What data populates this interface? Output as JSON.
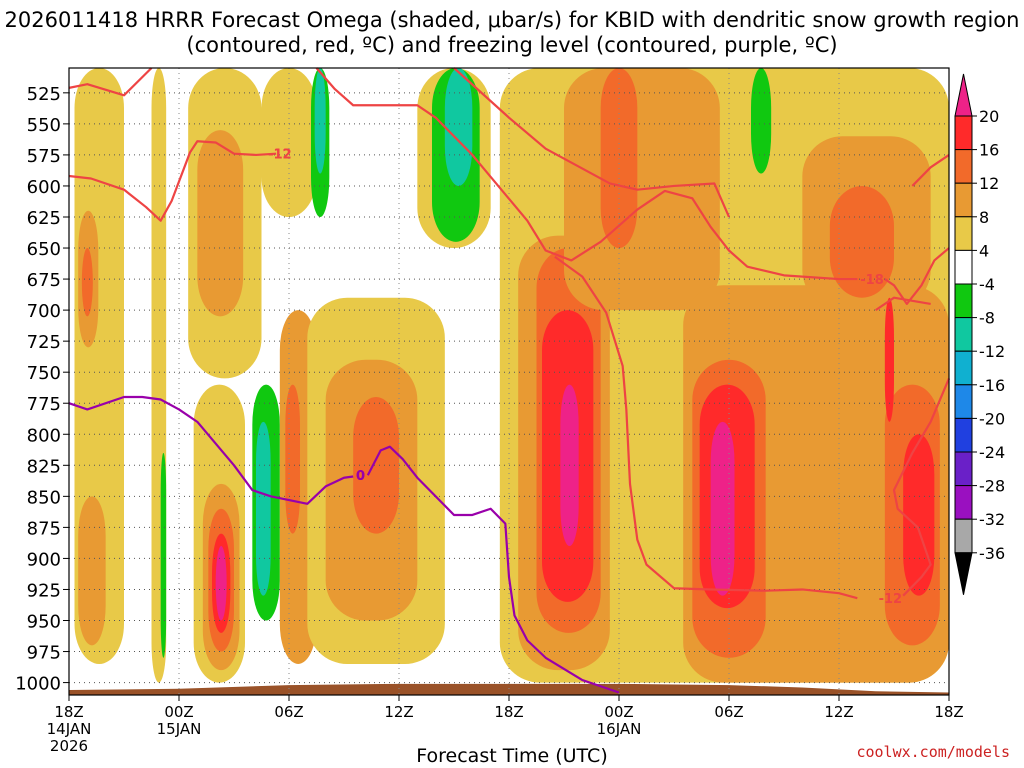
{
  "title": "2026011418 HRRR Forecast Omega (shaded, μbar/s) for KBID with dendritic snow growth region (contoured, red, ºC) and freezing level (contoured, purple, ºC)",
  "footer": {
    "credit": "coolwx.com/models"
  },
  "colors": {
    "grid": "#555555",
    "ground": "#9a5228",
    "dgz_contour": "#ee4444",
    "freezing_contour": "#9900aa"
  },
  "chart_data": {
    "type": "heatmap",
    "title": "2026011418 HRRR Forecast Omega (shaded, μbar/s) for KBID with dendritic snow growth region (contoured, red, ºC) and freezing level (contoured, purple, ºC)",
    "xlabel": "Forecast Time (UTC)",
    "ylabel": "",
    "x_range_hours": [
      0,
      48
    ],
    "ylim": [
      1010,
      505
    ],
    "y_ticks": [
      525,
      550,
      575,
      600,
      625,
      650,
      675,
      700,
      725,
      750,
      775,
      800,
      825,
      850,
      875,
      900,
      925,
      950,
      975,
      1000
    ],
    "x_ticks": [
      {
        "h": 0,
        "lines": [
          "18Z",
          "14JAN",
          "2026"
        ]
      },
      {
        "h": 6,
        "lines": [
          "00Z",
          "15JAN"
        ]
      },
      {
        "h": 12,
        "lines": [
          "06Z"
        ]
      },
      {
        "h": 18,
        "lines": [
          "12Z"
        ]
      },
      {
        "h": 24,
        "lines": [
          "18Z"
        ]
      },
      {
        "h": 30,
        "lines": [
          "00Z",
          "16JAN"
        ]
      },
      {
        "h": 36,
        "lines": [
          "06Z"
        ]
      },
      {
        "h": 42,
        "lines": [
          "12Z"
        ]
      },
      {
        "h": 48,
        "lines": [
          "18Z"
        ]
      }
    ],
    "colorbar": {
      "levels": [
        "20",
        "16",
        "12",
        "8",
        "4",
        "-4",
        "-8",
        "-12",
        "-16",
        "-20",
        "-24",
        "-28",
        "-32",
        "-36"
      ],
      "colors": [
        "#ff2a2a",
        "#f26a2a",
        "#e89a33",
        "#e8c948",
        "#ffffff",
        "#10c810",
        "#10c8a0",
        "#10b0d0",
        "#1e88e8",
        "#2040e0",
        "#6a20c8",
        "#9a10c0",
        "#a8a8a8",
        "#000000"
      ],
      "top_cap": "#ee2288",
      "bottom_cap": "#000000"
    },
    "omega_cells": [
      {
        "h0": 0.3,
        "h1": 3,
        "p0": 505,
        "p1": 985,
        "level": 4,
        "color": "#e8c948"
      },
      {
        "h0": 0.5,
        "h1": 1.6,
        "p0": 620,
        "p1": 730,
        "level": 8,
        "color": "#e89a33"
      },
      {
        "h0": 0.7,
        "h1": 1.3,
        "p0": 650,
        "p1": 705,
        "level": 12,
        "color": "#f26a2a"
      },
      {
        "h0": 0.5,
        "h1": 2,
        "p0": 850,
        "p1": 970,
        "level": 8,
        "color": "#e89a33"
      },
      {
        "h0": 4.5,
        "h1": 5.3,
        "p0": 505,
        "p1": 1000,
        "level": 4,
        "color": "#e8c948"
      },
      {
        "h0": 5,
        "h1": 5.3,
        "p0": 815,
        "p1": 980,
        "level": -8,
        "color": "#10c810"
      },
      {
        "h0": 6.5,
        "h1": 10.5,
        "p0": 505,
        "p1": 755,
        "level": 4,
        "color": "#e8c948"
      },
      {
        "h0": 7,
        "h1": 9.5,
        "p0": 555,
        "p1": 705,
        "level": 8,
        "color": "#e89a33"
      },
      {
        "h0": 6.8,
        "h1": 9.6,
        "p0": 760,
        "p1": 1000,
        "level": 4,
        "color": "#e8c948"
      },
      {
        "h0": 7.3,
        "h1": 9.3,
        "p0": 840,
        "p1": 990,
        "level": 8,
        "color": "#e89a33"
      },
      {
        "h0": 7.6,
        "h1": 9,
        "p0": 860,
        "p1": 975,
        "level": 12,
        "color": "#f26a2a"
      },
      {
        "h0": 7.8,
        "h1": 8.8,
        "p0": 880,
        "p1": 960,
        "level": 16,
        "color": "#ff2a2a"
      },
      {
        "h0": 8,
        "h1": 8.6,
        "p0": 890,
        "p1": 950,
        "level": 20,
        "color": "#ee2288"
      },
      {
        "h0": 10,
        "h1": 11.5,
        "p0": 760,
        "p1": 950,
        "level": -8,
        "color": "#10c810"
      },
      {
        "h0": 10.2,
        "h1": 11,
        "p0": 790,
        "p1": 930,
        "level": -12,
        "color": "#10c8a0"
      },
      {
        "h0": 11.5,
        "h1": 13.5,
        "p0": 700,
        "p1": 985,
        "level": 8,
        "color": "#e89a33"
      },
      {
        "h0": 11.8,
        "h1": 12.6,
        "p0": 760,
        "p1": 880,
        "level": 12,
        "color": "#f26a2a"
      },
      {
        "h0": 13,
        "h1": 20.5,
        "p0": 690,
        "p1": 985,
        "level": 4,
        "color": "#e8c948"
      },
      {
        "h0": 14,
        "h1": 19,
        "p0": 740,
        "p1": 950,
        "level": 8,
        "color": "#e89a33"
      },
      {
        "h0": 15.5,
        "h1": 18,
        "p0": 770,
        "p1": 880,
        "level": 12,
        "color": "#f26a2a"
      },
      {
        "h0": 10.5,
        "h1": 13.5,
        "p0": 505,
        "p1": 625,
        "level": 4,
        "color": "#e8c948"
      },
      {
        "h0": 13.2,
        "h1": 14.2,
        "p0": 505,
        "p1": 625,
        "level": -8,
        "color": "#10c810"
      },
      {
        "h0": 13.4,
        "h1": 14,
        "p0": 505,
        "p1": 590,
        "level": -12,
        "color": "#10c8a0"
      },
      {
        "h0": 19,
        "h1": 23,
        "p0": 505,
        "p1": 650,
        "level": 4,
        "color": "#e8c948"
      },
      {
        "h0": 19.8,
        "h1": 22.4,
        "p0": 505,
        "p1": 645,
        "level": -8,
        "color": "#10c810"
      },
      {
        "h0": 20.5,
        "h1": 22,
        "p0": 505,
        "p1": 600,
        "level": -12,
        "color": "#10c8a0"
      },
      {
        "h0": 23.5,
        "h1": 48,
        "p0": 505,
        "p1": 1000,
        "level": 4,
        "color": "#e8c948"
      },
      {
        "h0": 24.5,
        "h1": 29.5,
        "p0": 640,
        "p1": 990,
        "level": 8,
        "color": "#e89a33"
      },
      {
        "h0": 25.5,
        "h1": 29,
        "p0": 650,
        "p1": 960,
        "level": 12,
        "color": "#f26a2a"
      },
      {
        "h0": 25.8,
        "h1": 28.6,
        "p0": 700,
        "p1": 935,
        "level": 16,
        "color": "#ff2a2a"
      },
      {
        "h0": 26.8,
        "h1": 27.8,
        "p0": 760,
        "p1": 890,
        "level": 20,
        "color": "#ee2288"
      },
      {
        "h0": 27,
        "h1": 35.5,
        "p0": 505,
        "p1": 700,
        "level": 8,
        "color": "#e89a33"
      },
      {
        "h0": 29,
        "h1": 31,
        "p0": 505,
        "p1": 650,
        "level": 12,
        "color": "#f26a2a"
      },
      {
        "h0": 33.5,
        "h1": 48,
        "p0": 680,
        "p1": 1000,
        "level": 8,
        "color": "#e89a33"
      },
      {
        "h0": 34,
        "h1": 38,
        "p0": 740,
        "p1": 980,
        "level": 12,
        "color": "#f26a2a"
      },
      {
        "h0": 34.4,
        "h1": 37.4,
        "p0": 760,
        "p1": 940,
        "level": 16,
        "color": "#ff2a2a"
      },
      {
        "h0": 35,
        "h1": 36.3,
        "p0": 790,
        "p1": 930,
        "level": 20,
        "color": "#ee2288"
      },
      {
        "h0": 37.2,
        "h1": 38.3,
        "p0": 505,
        "p1": 590,
        "level": -8,
        "color": "#10c810"
      },
      {
        "h0": 40,
        "h1": 47,
        "p0": 560,
        "p1": 700,
        "level": 8,
        "color": "#e89a33"
      },
      {
        "h0": 41.5,
        "h1": 45,
        "p0": 600,
        "p1": 690,
        "level": 12,
        "color": "#f26a2a"
      },
      {
        "h0": 44.5,
        "h1": 47.5,
        "p0": 760,
        "p1": 970,
        "level": 12,
        "color": "#f26a2a"
      },
      {
        "h0": 45.5,
        "h1": 47.2,
        "p0": 800,
        "p1": 930,
        "level": 16,
        "color": "#ff2a2a"
      },
      {
        "h0": 44.5,
        "h1": 45,
        "p0": 690,
        "p1": 790,
        "level": 16,
        "color": "#ff2a2a"
      }
    ],
    "dgz_contours": [
      {
        "label": "-12",
        "label_at": {
          "h": 11.5,
          "p": 574
        },
        "points": [
          [
            0,
            521
          ],
          [
            1,
            518
          ],
          [
            3,
            527
          ],
          [
            4.5,
            505
          ]
        ]
      },
      {
        "label": "-12",
        "label_at": {
          "h": 11.5,
          "p": 574
        },
        "points": [
          [
            0,
            592
          ],
          [
            1.2,
            594
          ],
          [
            3,
            603
          ],
          [
            4.2,
            617
          ],
          [
            5,
            628
          ],
          [
            5.6,
            612
          ],
          [
            6.6,
            573
          ],
          [
            7,
            564
          ],
          [
            8,
            565
          ],
          [
            9,
            574
          ],
          [
            10.2,
            575
          ],
          [
            11.3,
            574
          ]
        ]
      },
      {
        "label": "",
        "label_at": null,
        "points": [
          [
            13.5,
            505
          ],
          [
            14.5,
            522
          ],
          [
            15.5,
            535
          ],
          [
            19,
            535
          ],
          [
            20,
            545
          ],
          [
            22,
            575
          ],
          [
            25,
            628
          ],
          [
            26,
            652
          ],
          [
            27.4,
            660
          ],
          [
            29,
            645
          ],
          [
            31,
            619
          ],
          [
            32.5,
            604
          ],
          [
            34,
            610
          ],
          [
            35,
            633
          ],
          [
            36,
            652
          ],
          [
            37,
            665
          ],
          [
            39,
            672
          ],
          [
            42,
            675
          ],
          [
            43,
            675
          ]
        ]
      },
      {
        "label": "-18",
        "label_at": {
          "h": 43.8,
          "p": 675
        },
        "points": [
          [
            44.5,
            675
          ],
          [
            45,
            680
          ],
          [
            45.7,
            695
          ],
          [
            46.5,
            680
          ],
          [
            47.2,
            660
          ],
          [
            48,
            650
          ]
        ]
      },
      {
        "label": "",
        "label_at": null,
        "points": [
          [
            21,
            505
          ],
          [
            24,
            545
          ],
          [
            26,
            570
          ],
          [
            29.5,
            598
          ],
          [
            31,
            603
          ],
          [
            33,
            600
          ],
          [
            35.2,
            598
          ],
          [
            36,
            625
          ]
        ]
      },
      {
        "label": "",
        "label_at": null,
        "points": [
          [
            46,
            600
          ],
          [
            47,
            585
          ],
          [
            48,
            575
          ]
        ]
      },
      {
        "label": "",
        "label_at": null,
        "points": [
          [
            44,
            700
          ],
          [
            45,
            690
          ],
          [
            47,
            695
          ]
        ]
      },
      {
        "label": "",
        "label_at": null,
        "points": [
          [
            26.5,
            657
          ],
          [
            28,
            673
          ],
          [
            29.3,
            702
          ],
          [
            30.2,
            745
          ],
          [
            30.4,
            780
          ],
          [
            30.6,
            840
          ],
          [
            31,
            885
          ],
          [
            31.5,
            905
          ],
          [
            33,
            924
          ],
          [
            35,
            925
          ],
          [
            38,
            926
          ],
          [
            40,
            925
          ],
          [
            42,
            928
          ],
          [
            43,
            932
          ]
        ]
      },
      {
        "label": "-12",
        "label_at": {
          "h": 44.8,
          "p": 932
        },
        "points": [
          [
            45.5,
            930
          ],
          [
            46.5,
            915
          ],
          [
            47,
            905
          ],
          [
            46.3,
            875
          ],
          [
            45.2,
            860
          ],
          [
            45,
            845
          ],
          [
            46,
            815
          ],
          [
            47,
            790
          ],
          [
            48,
            755
          ]
        ]
      }
    ],
    "freezing_contours": [
      {
        "label": "0",
        "label_at": {
          "h": 15.9,
          "p": 833
        },
        "points": [
          [
            0,
            775
          ],
          [
            1,
            780
          ],
          [
            3,
            770
          ],
          [
            4,
            770
          ],
          [
            5,
            772
          ],
          [
            6,
            780
          ],
          [
            7,
            790
          ],
          [
            9,
            825
          ],
          [
            10,
            845
          ],
          [
            11,
            850
          ],
          [
            13,
            856
          ],
          [
            14,
            842
          ],
          [
            15,
            835
          ],
          [
            15.5,
            834
          ]
        ]
      },
      {
        "label": "0",
        "label_at": {
          "h": 15.9,
          "p": 833
        },
        "points": [
          [
            16.3,
            833
          ],
          [
            17,
            813
          ],
          [
            17.5,
            810
          ],
          [
            18.2,
            820
          ],
          [
            19,
            835
          ],
          [
            21,
            865
          ],
          [
            22,
            865
          ],
          [
            23,
            860
          ],
          [
            23.8,
            872
          ],
          [
            24,
            915
          ],
          [
            24.3,
            946
          ],
          [
            25,
            966
          ],
          [
            26,
            980
          ],
          [
            28,
            998
          ],
          [
            30,
            1008
          ]
        ]
      }
    ],
    "ground_surface_hPa": [
      [
        0,
        1006
      ],
      [
        6,
        1005
      ],
      [
        12,
        1002
      ],
      [
        18,
        1001
      ],
      [
        24,
        1001
      ],
      [
        30,
        1001
      ],
      [
        36,
        1002
      ],
      [
        40,
        1004
      ],
      [
        44,
        1007
      ],
      [
        48,
        1008
      ]
    ]
  }
}
